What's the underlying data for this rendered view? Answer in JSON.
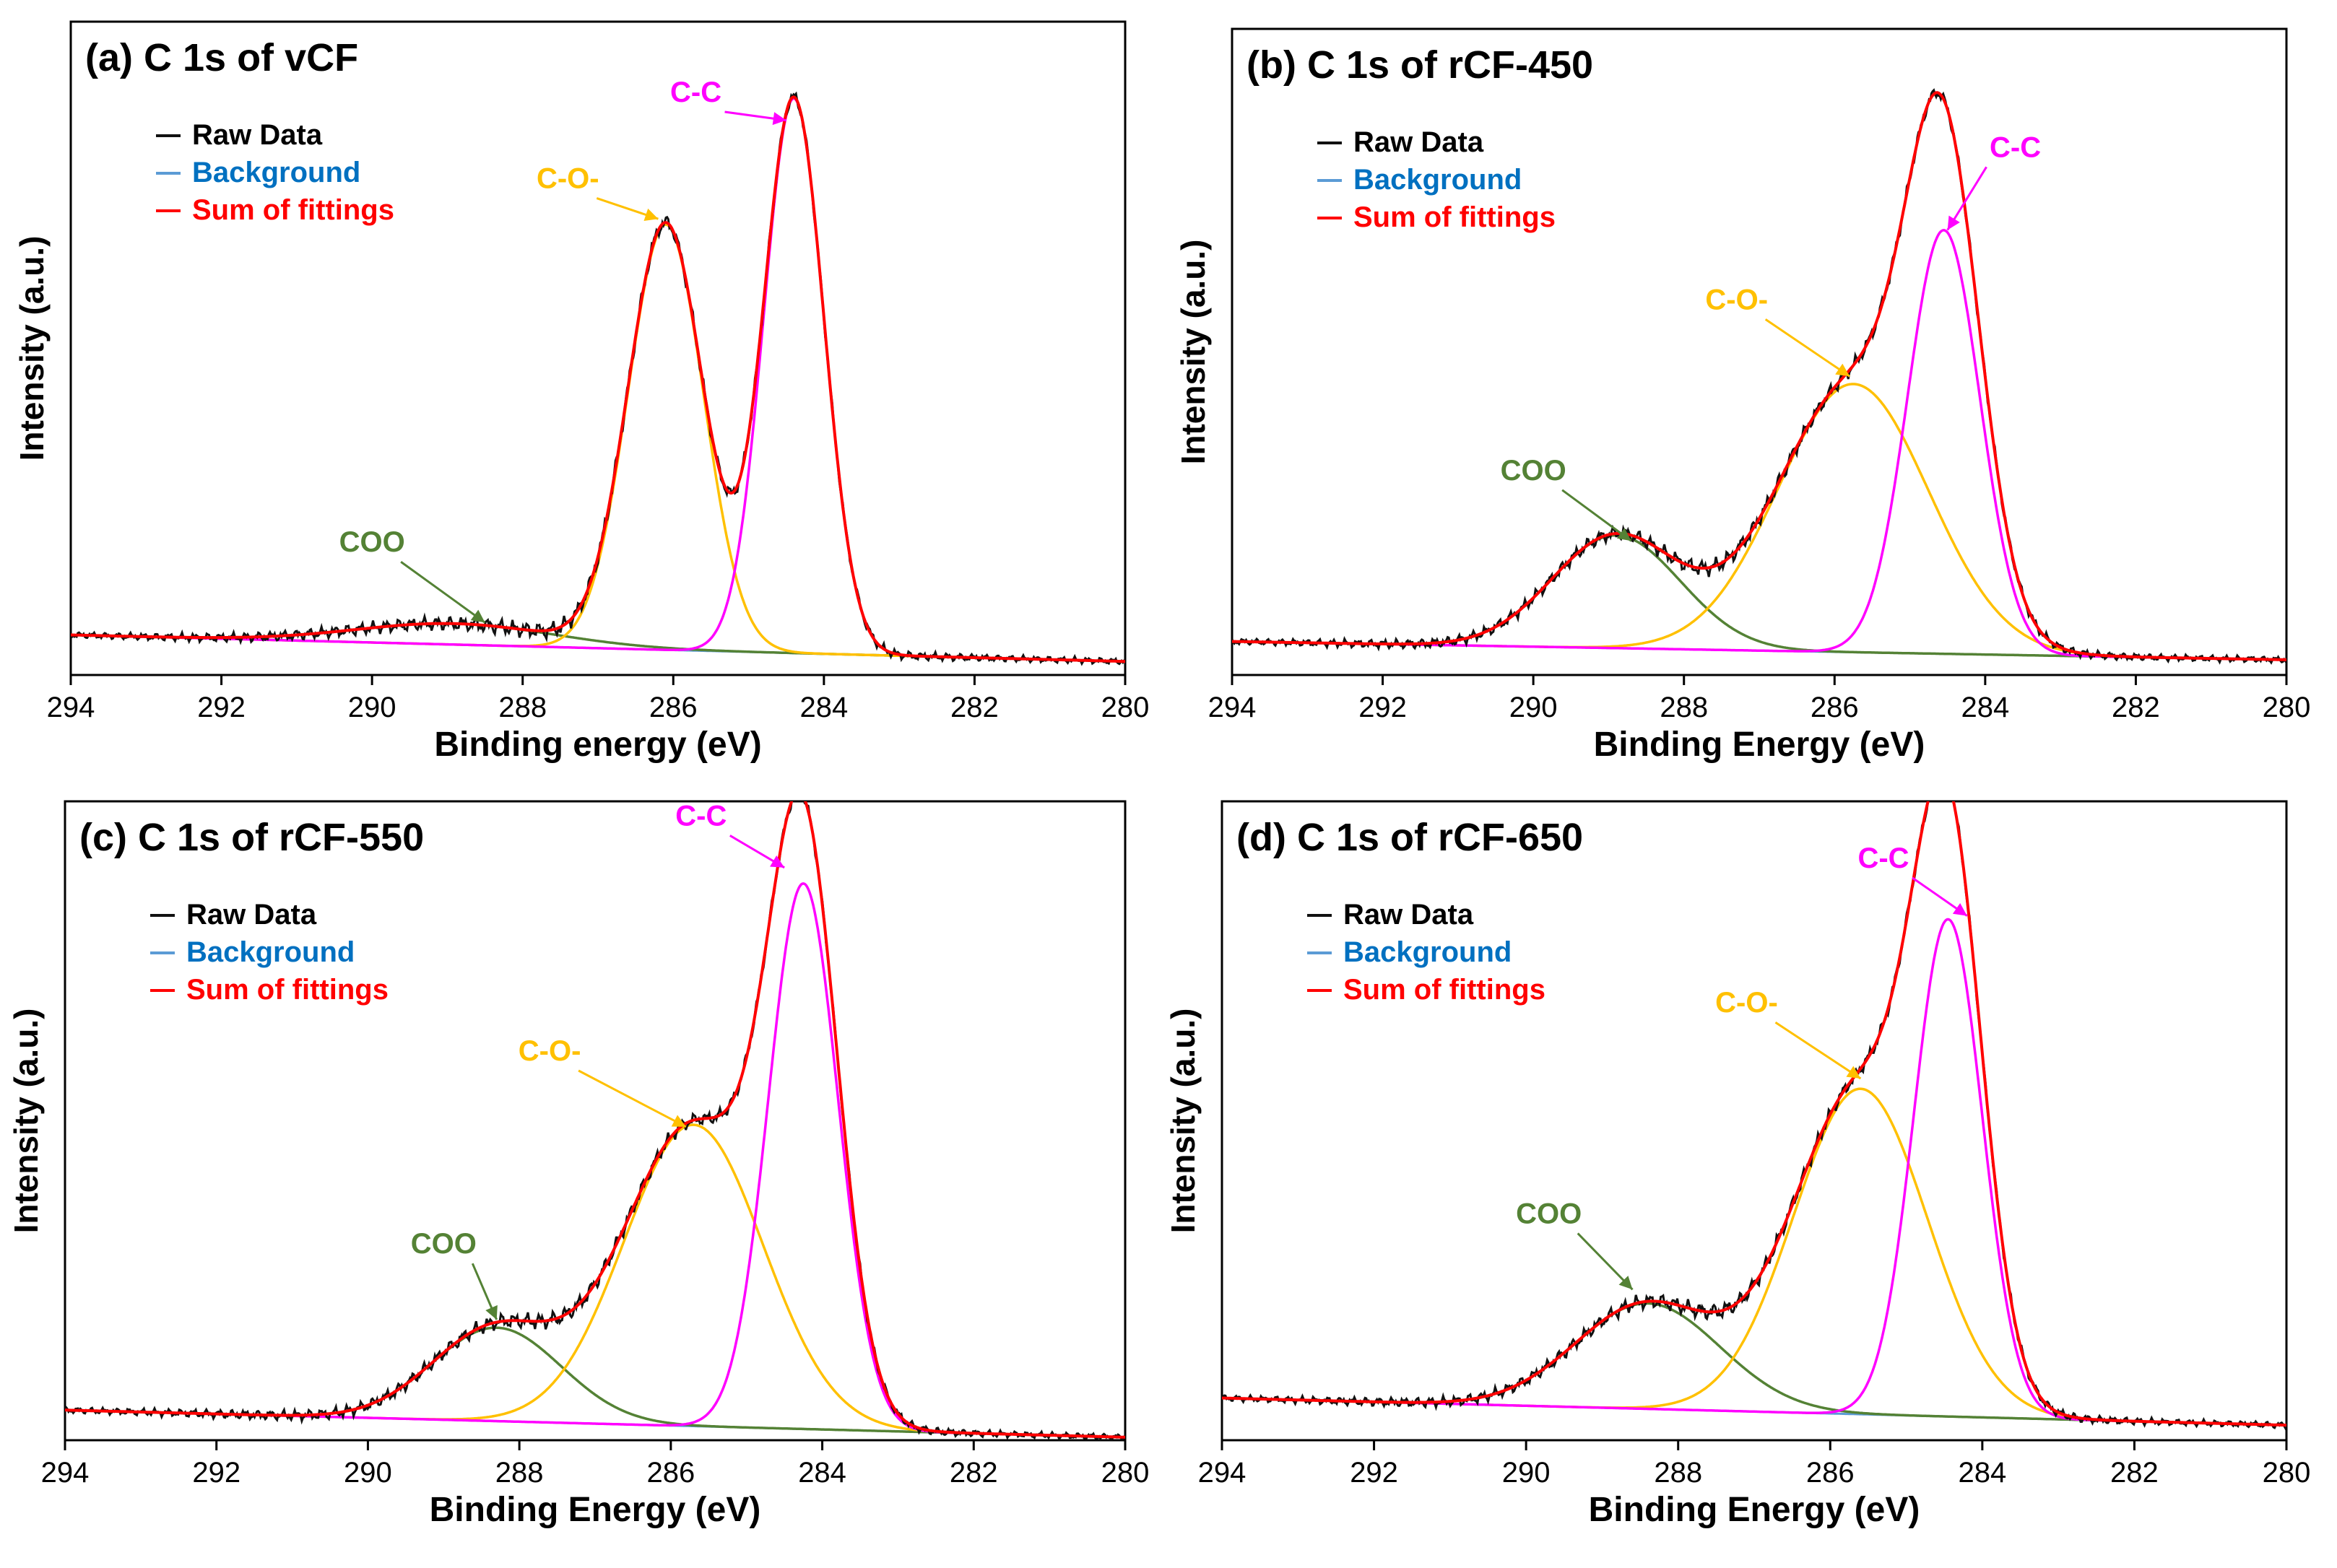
{
  "colors": {
    "raw": "#111111",
    "background": "#5b9bd5",
    "sum": "#ff0000",
    "cc": "#ff00ff",
    "co": "#ffc000",
    "coo": "#548235",
    "legend_background_text": "#0070c0",
    "legend_sum_text": "#ff0000"
  },
  "legend": {
    "raw": "Raw Data",
    "background": "Background",
    "sum": "Sum of fittings"
  },
  "chart_data": [
    {
      "type": "line",
      "title": "(a) C 1s of vCF",
      "xlabel": "Binding energy (eV)",
      "ylabel": "Intensity (a.u.)",
      "xlim": [
        294,
        280
      ],
      "ylim": [
        -0.04,
        1.02
      ],
      "x_ticks": [
        "294",
        "292",
        "290",
        "288",
        "286",
        "284",
        "282",
        "280"
      ],
      "grid": false,
      "legend_position": "top-left",
      "background": {
        "x": [
          294,
          280
        ],
        "y": [
          0.025,
          -0.018
        ]
      },
      "peaks": [
        {
          "name": "COO",
          "center": 288.9,
          "amp": 0.034,
          "sigma": 1.3
        },
        {
          "name": "C-O-",
          "center": 286.1,
          "amp": 0.69,
          "sigma": 0.5
        },
        {
          "name": "C-C",
          "center": 284.4,
          "amp": 0.9,
          "sigma": 0.4
        }
      ],
      "annotations": [
        {
          "text": "COO",
          "color": "coo",
          "tx": 290.0,
          "ty": 0.16,
          "ax": 288.5,
          "ay": 0.045
        },
        {
          "text": "C-O-",
          "color": "co",
          "tx": 287.4,
          "ty": 0.75,
          "ax": 286.2,
          "ay": 0.7
        },
        {
          "text": "C-C",
          "color": "cc",
          "tx": 285.7,
          "ty": 0.89,
          "ax": 284.5,
          "ay": 0.86
        }
      ]
    },
    {
      "type": "line",
      "title": "(b) C 1s of rCF-450",
      "xlabel": "Binding Energy (eV)",
      "ylabel": "Intensity (a.u.)",
      "xlim": [
        294,
        280
      ],
      "ylim": [
        -0.04,
        1.02
      ],
      "x_ticks": [
        "294",
        "292",
        "290",
        "288",
        "286",
        "284",
        "282",
        "280"
      ],
      "grid": false,
      "legend_position": "top-left",
      "background": {
        "x": [
          294,
          280
        ],
        "y": [
          0.015,
          -0.015
        ]
      },
      "peaks": [
        {
          "name": "COO",
          "center": 288.9,
          "amp": 0.185,
          "sigma": 0.85
        },
        {
          "name": "C-O-",
          "center": 285.75,
          "amp": 0.44,
          "sigma": 1.0
        },
        {
          "name": "C-C",
          "center": 284.55,
          "amp": 0.695,
          "sigma": 0.48
        }
      ],
      "annotations": [
        {
          "text": "COO",
          "color": "coo",
          "tx": 290.0,
          "ty": 0.28,
          "ax": 288.7,
          "ay": 0.18
        },
        {
          "text": "C-O-",
          "color": "co",
          "tx": 287.3,
          "ty": 0.56,
          "ax": 285.8,
          "ay": 0.45
        },
        {
          "text": "C-C",
          "color": "cc",
          "tx": 283.6,
          "ty": 0.81,
          "ax": 284.5,
          "ay": 0.69
        }
      ]
    },
    {
      "type": "line",
      "title": "(c) C 1s of rCF-550",
      "xlabel": "Binding Energy (eV)",
      "ylabel": "Intensity (a.u.)",
      "xlim": [
        294,
        280
      ],
      "ylim": [
        -0.02,
        1.04
      ],
      "x_ticks": [
        "294",
        "292",
        "290",
        "288",
        "286",
        "284",
        "282",
        "280"
      ],
      "grid": false,
      "legend_position": "top-left",
      "background": {
        "x": [
          294,
          280
        ],
        "y": [
          0.03,
          -0.015
        ]
      },
      "peaks": [
        {
          "name": "COO",
          "center": 288.3,
          "amp": 0.155,
          "sigma": 0.85
        },
        {
          "name": "C-O-",
          "center": 285.7,
          "amp": 0.5,
          "sigma": 0.92
        },
        {
          "name": "C-C",
          "center": 284.25,
          "amp": 0.905,
          "sigma": 0.46
        }
      ],
      "annotations": [
        {
          "text": "COO",
          "color": "coo",
          "tx": 289.0,
          "ty": 0.29,
          "ax": 288.3,
          "ay": 0.18
        },
        {
          "text": "C-O-",
          "color": "co",
          "tx": 287.6,
          "ty": 0.61,
          "ax": 285.8,
          "ay": 0.5
        },
        {
          "text": "C-C",
          "color": "cc",
          "tx": 285.6,
          "ty": 1.0,
          "ax": 284.5,
          "ay": 0.93
        }
      ]
    },
    {
      "type": "line",
      "title": "(d) C 1s of rCF-650",
      "xlabel": "Binding Energy (eV)",
      "ylabel": "Intensity (a.u.)",
      "xlim": [
        294,
        280
      ],
      "ylim": [
        -0.04,
        1.02
      ],
      "x_ticks": [
        "294",
        "292",
        "290",
        "288",
        "286",
        "284",
        "282",
        "280"
      ],
      "grid": false,
      "legend_position": "top-left",
      "background": {
        "x": [
          294,
          280
        ],
        "y": [
          0.03,
          -0.015
        ]
      },
      "peaks": [
        {
          "name": "COO",
          "center": 288.4,
          "amp": 0.175,
          "sigma": 0.95
        },
        {
          "name": "C-O-",
          "center": 285.6,
          "amp": 0.54,
          "sigma": 0.88
        },
        {
          "name": "C-C",
          "center": 284.45,
          "amp": 0.825,
          "sigma": 0.45
        }
      ],
      "annotations": [
        {
          "text": "COO",
          "color": "coo",
          "tx": 289.7,
          "ty": 0.32,
          "ax": 288.6,
          "ay": 0.21
        },
        {
          "text": "C-O-",
          "color": "co",
          "tx": 287.1,
          "ty": 0.67,
          "ax": 285.6,
          "ay": 0.56
        },
        {
          "text": "C-C",
          "color": "cc",
          "tx": 285.3,
          "ty": 0.91,
          "ax": 284.2,
          "ay": 0.83
        }
      ]
    }
  ]
}
